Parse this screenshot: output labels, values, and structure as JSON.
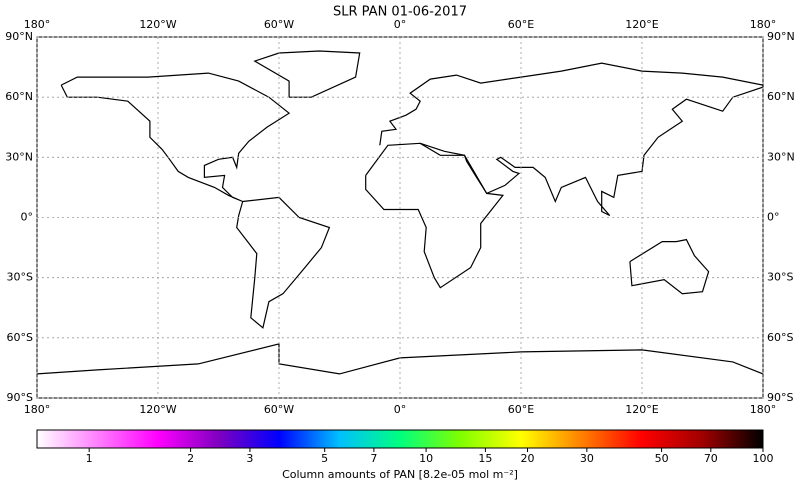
{
  "chart_data": {
    "type": "map",
    "title": "SLR PAN 01-06-2017",
    "xlim": [
      -180,
      180
    ],
    "ylim": [
      -90,
      90
    ],
    "xticks": [
      {
        "value": -180,
        "label": "180°"
      },
      {
        "value": -120,
        "label": "120°W"
      },
      {
        "value": -60,
        "label": "60°W"
      },
      {
        "value": 0,
        "label": "0°"
      },
      {
        "value": 60,
        "label": "60°E"
      },
      {
        "value": 120,
        "label": "120°E"
      },
      {
        "value": 180,
        "label": "180°"
      }
    ],
    "yticks": [
      {
        "value": 90,
        "label": "90°N"
      },
      {
        "value": 60,
        "label": "60°N"
      },
      {
        "value": 30,
        "label": "30°N"
      },
      {
        "value": 0,
        "label": "0°"
      },
      {
        "value": -30,
        "label": "30°S"
      },
      {
        "value": -60,
        "label": "60°S"
      },
      {
        "value": -90,
        "label": "90°S"
      }
    ],
    "grid": true,
    "colorbar": {
      "label": "Column amounts of PAN [8.2e-05 mol m⁻²]",
      "lim": [
        0.7,
        100
      ],
      "log": true,
      "ticks": [
        1,
        2,
        3,
        5,
        7,
        10,
        15,
        20,
        30,
        50,
        70,
        100
      ],
      "colors": [
        "#ffffff",
        "#ff80ff",
        "#ff00ff",
        "#8000c0",
        "#0000ff",
        "#00c0ff",
        "#00ff80",
        "#80ff00",
        "#ffff00",
        "#ff8000",
        "#ff0000",
        "#a00000",
        "#000000"
      ]
    }
  }
}
